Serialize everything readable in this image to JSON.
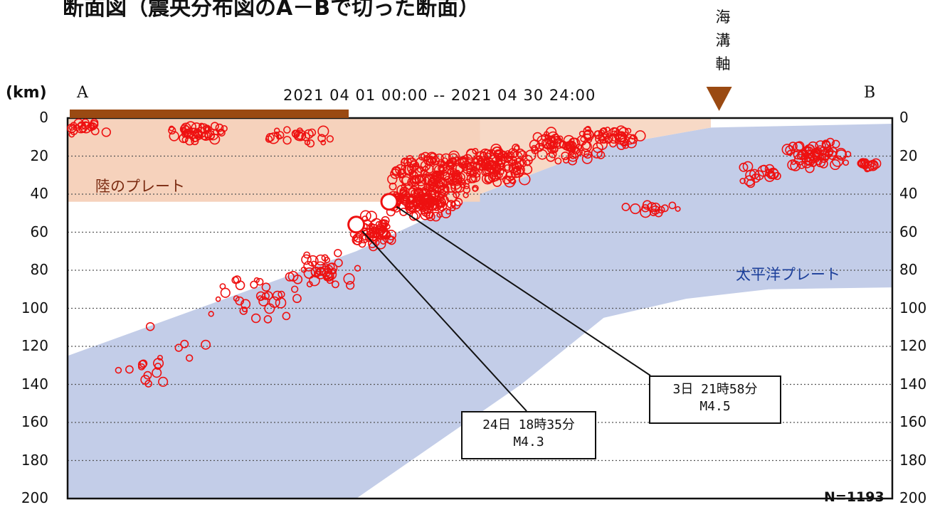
{
  "title": "断面図（震央分布図のA－Bで切った断面）",
  "date_range": "2021 04 01 00:00 -- 2021 04 30 24:00",
  "axis_unit": "(km)",
  "end_a": "A",
  "end_b": "B",
  "trench_label": [
    "海",
    "溝",
    "軸"
  ],
  "count_label": "N=1193",
  "labels": {
    "land_plate": "陸のプレート",
    "pacific_plate": "太平洋プレート"
  },
  "callouts": [
    {
      "id": "c24",
      "line1": "24日 18時35分",
      "line2": "M4.3"
    },
    {
      "id": "c3",
      "line1": "3日 21時58分",
      "line2": "M4.5"
    }
  ],
  "colors": {
    "land_plate_fill": "#f6d2bc",
    "pacific_plate_fill": "#c3cde8",
    "quake": "#ee1111",
    "trench_marker": "#9a4a12",
    "land_bar": "#9a4a12",
    "land_label": "#7a2a10",
    "pacific_label": "#1c3f9a"
  },
  "chart_data": {
    "type": "scatter",
    "ylabel": "(km)",
    "ylim": [
      0,
      200
    ],
    "y_ticks": [
      "0",
      "20",
      "40",
      "60",
      "80",
      "100",
      "120",
      "140",
      "160",
      "180",
      "200"
    ],
    "y_inverted": true,
    "x_units": "distance along A-B (0 = A, 1 = B)",
    "xlim": [
      0,
      1
    ],
    "total_events": 1193,
    "grid": "horizontal dotted",
    "land_plate": {
      "depth_top": 0,
      "depth_bottom": 44
    },
    "pacific_plate": {
      "upper_boundary": [
        [
          0,
          125
        ],
        [
          0.35,
          70
        ],
        [
          0.5,
          40
        ],
        [
          0.65,
          15
        ],
        [
          0.78,
          5
        ],
        [
          1,
          3
        ]
      ],
      "lower_boundary": [
        [
          0.35,
          200
        ],
        [
          0.55,
          140
        ],
        [
          0.65,
          105
        ],
        [
          0.75,
          95
        ],
        [
          0.85,
          90
        ],
        [
          1,
          89
        ]
      ]
    },
    "trench_axis_x": 0.79,
    "clusters": [
      {
        "x": 0.02,
        "depth": 5,
        "spread_x": 0.03,
        "spread_d": 4,
        "n": 20
      },
      {
        "x": 0.16,
        "depth": 8,
        "spread_x": 0.04,
        "spread_d": 5,
        "n": 45
      },
      {
        "x": 0.28,
        "depth": 10,
        "spread_x": 0.05,
        "spread_d": 6,
        "n": 25
      },
      {
        "x": 0.45,
        "depth": 30,
        "spread_x": 0.06,
        "spread_d": 12,
        "n": 160
      },
      {
        "x": 0.43,
        "depth": 45,
        "spread_x": 0.05,
        "spread_d": 8,
        "n": 120
      },
      {
        "x": 0.37,
        "depth": 60,
        "spread_x": 0.03,
        "spread_d": 10,
        "n": 60
      },
      {
        "x": 0.31,
        "depth": 80,
        "spread_x": 0.05,
        "spread_d": 12,
        "n": 40
      },
      {
        "x": 0.23,
        "depth": 95,
        "spread_x": 0.06,
        "spread_d": 12,
        "n": 30
      },
      {
        "x": 0.12,
        "depth": 125,
        "spread_x": 0.07,
        "spread_d": 20,
        "n": 18
      },
      {
        "x": 0.52,
        "depth": 25,
        "spread_x": 0.05,
        "spread_d": 10,
        "n": 110
      },
      {
        "x": 0.6,
        "depth": 15,
        "spread_x": 0.05,
        "spread_d": 8,
        "n": 70
      },
      {
        "x": 0.66,
        "depth": 10,
        "spread_x": 0.04,
        "spread_d": 6,
        "n": 45
      },
      {
        "x": 0.7,
        "depth": 48,
        "spread_x": 0.06,
        "spread_d": 3,
        "n": 14
      },
      {
        "x": 0.84,
        "depth": 30,
        "spread_x": 0.03,
        "spread_d": 5,
        "n": 18
      },
      {
        "x": 0.91,
        "depth": 20,
        "spread_x": 0.04,
        "spread_d": 8,
        "n": 65
      },
      {
        "x": 0.97,
        "depth": 25,
        "spread_x": 0.02,
        "spread_d": 3,
        "n": 15
      }
    ],
    "highlighted_events": [
      {
        "label": "24日 18時35分 M4.3",
        "x": 0.35,
        "depth": 56,
        "magnitude": 4.3
      },
      {
        "label": "3日 21時58分 M4.5",
        "x": 0.39,
        "depth": 44,
        "magnitude": 4.5
      }
    ]
  }
}
